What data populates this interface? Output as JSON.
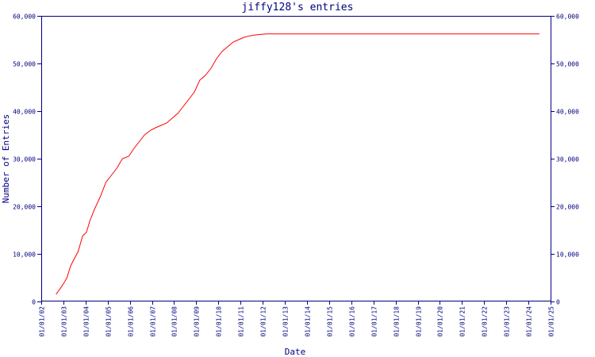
{
  "chart_data": {
    "type": "line",
    "title": "jiffy128's entries",
    "xlabel": "Date",
    "ylabel": "Number of Entries",
    "x_tick_labels": [
      "01/01/02",
      "01/01/03",
      "01/01/04",
      "01/01/05",
      "01/01/06",
      "01/01/07",
      "01/01/08",
      "01/01/09",
      "01/01/10",
      "01/01/11",
      "01/01/12",
      "01/01/13",
      "01/01/14",
      "01/01/15",
      "01/01/16",
      "01/01/17",
      "01/01/18",
      "01/01/19",
      "01/01/20",
      "01/01/21",
      "01/01/22",
      "01/01/23",
      "01/01/24",
      "01/01/25"
    ],
    "y_tick_labels": [
      "0",
      "10,000",
      "20,000",
      "30,000",
      "40,000",
      "50,000",
      "60,000"
    ],
    "ylim": [
      0,
      60000
    ],
    "xlim": [
      "2002-01-01",
      "2025-01-01"
    ],
    "grid": false,
    "colors": {
      "series": "#ff0000",
      "axes": "#000080",
      "text": "#000080"
    },
    "series": [
      {
        "x": [
          "2002-09-01",
          "2002-11-15",
          "2003-01-15",
          "2003-03-01",
          "2003-05-01",
          "2003-07-01",
          "2003-09-01",
          "2003-11-15",
          "2004-01-15",
          "2004-03-15",
          "2004-06-01",
          "2004-09-01",
          "2004-12-01",
          "2005-03-01",
          "2005-06-01",
          "2005-09-01",
          "2005-12-15",
          "2006-03-01",
          "2006-06-01",
          "2006-09-01",
          "2006-12-15",
          "2007-03-01",
          "2007-06-01",
          "2007-09-01",
          "2007-12-01",
          "2008-03-01",
          "2008-06-01",
          "2008-09-01",
          "2008-12-01",
          "2009-03-01",
          "2009-06-01",
          "2009-09-01",
          "2009-12-01",
          "2010-03-01",
          "2010-06-01",
          "2010-09-01",
          "2010-12-01",
          "2011-03-01",
          "2011-06-01",
          "2011-09-01",
          "2011-12-01",
          "2012-03-01",
          "2012-06-01",
          "2012-09-01",
          "2012-12-01",
          "2013-03-01",
          "2014-01-01",
          "2016-01-01",
          "2018-01-01",
          "2020-01-01",
          "2022-01-01",
          "2024-01-01",
          "2024-07-01"
        ],
        "y": [
          1500,
          2800,
          4000,
          5000,
          7500,
          9000,
          10500,
          13800,
          14500,
          17000,
          19500,
          22000,
          25000,
          26500,
          28000,
          30000,
          30500,
          32000,
          33500,
          35000,
          36000,
          36500,
          37000,
          37500,
          38500,
          39500,
          41000,
          42500,
          44000,
          46500,
          47500,
          49000,
          51000,
          52500,
          53500,
          54500,
          55000,
          55500,
          55800,
          56000,
          56100,
          56200,
          56200,
          56200,
          56200,
          56200,
          56200,
          56200,
          56200,
          56200,
          56200,
          56200,
          56200
        ]
      }
    ]
  }
}
